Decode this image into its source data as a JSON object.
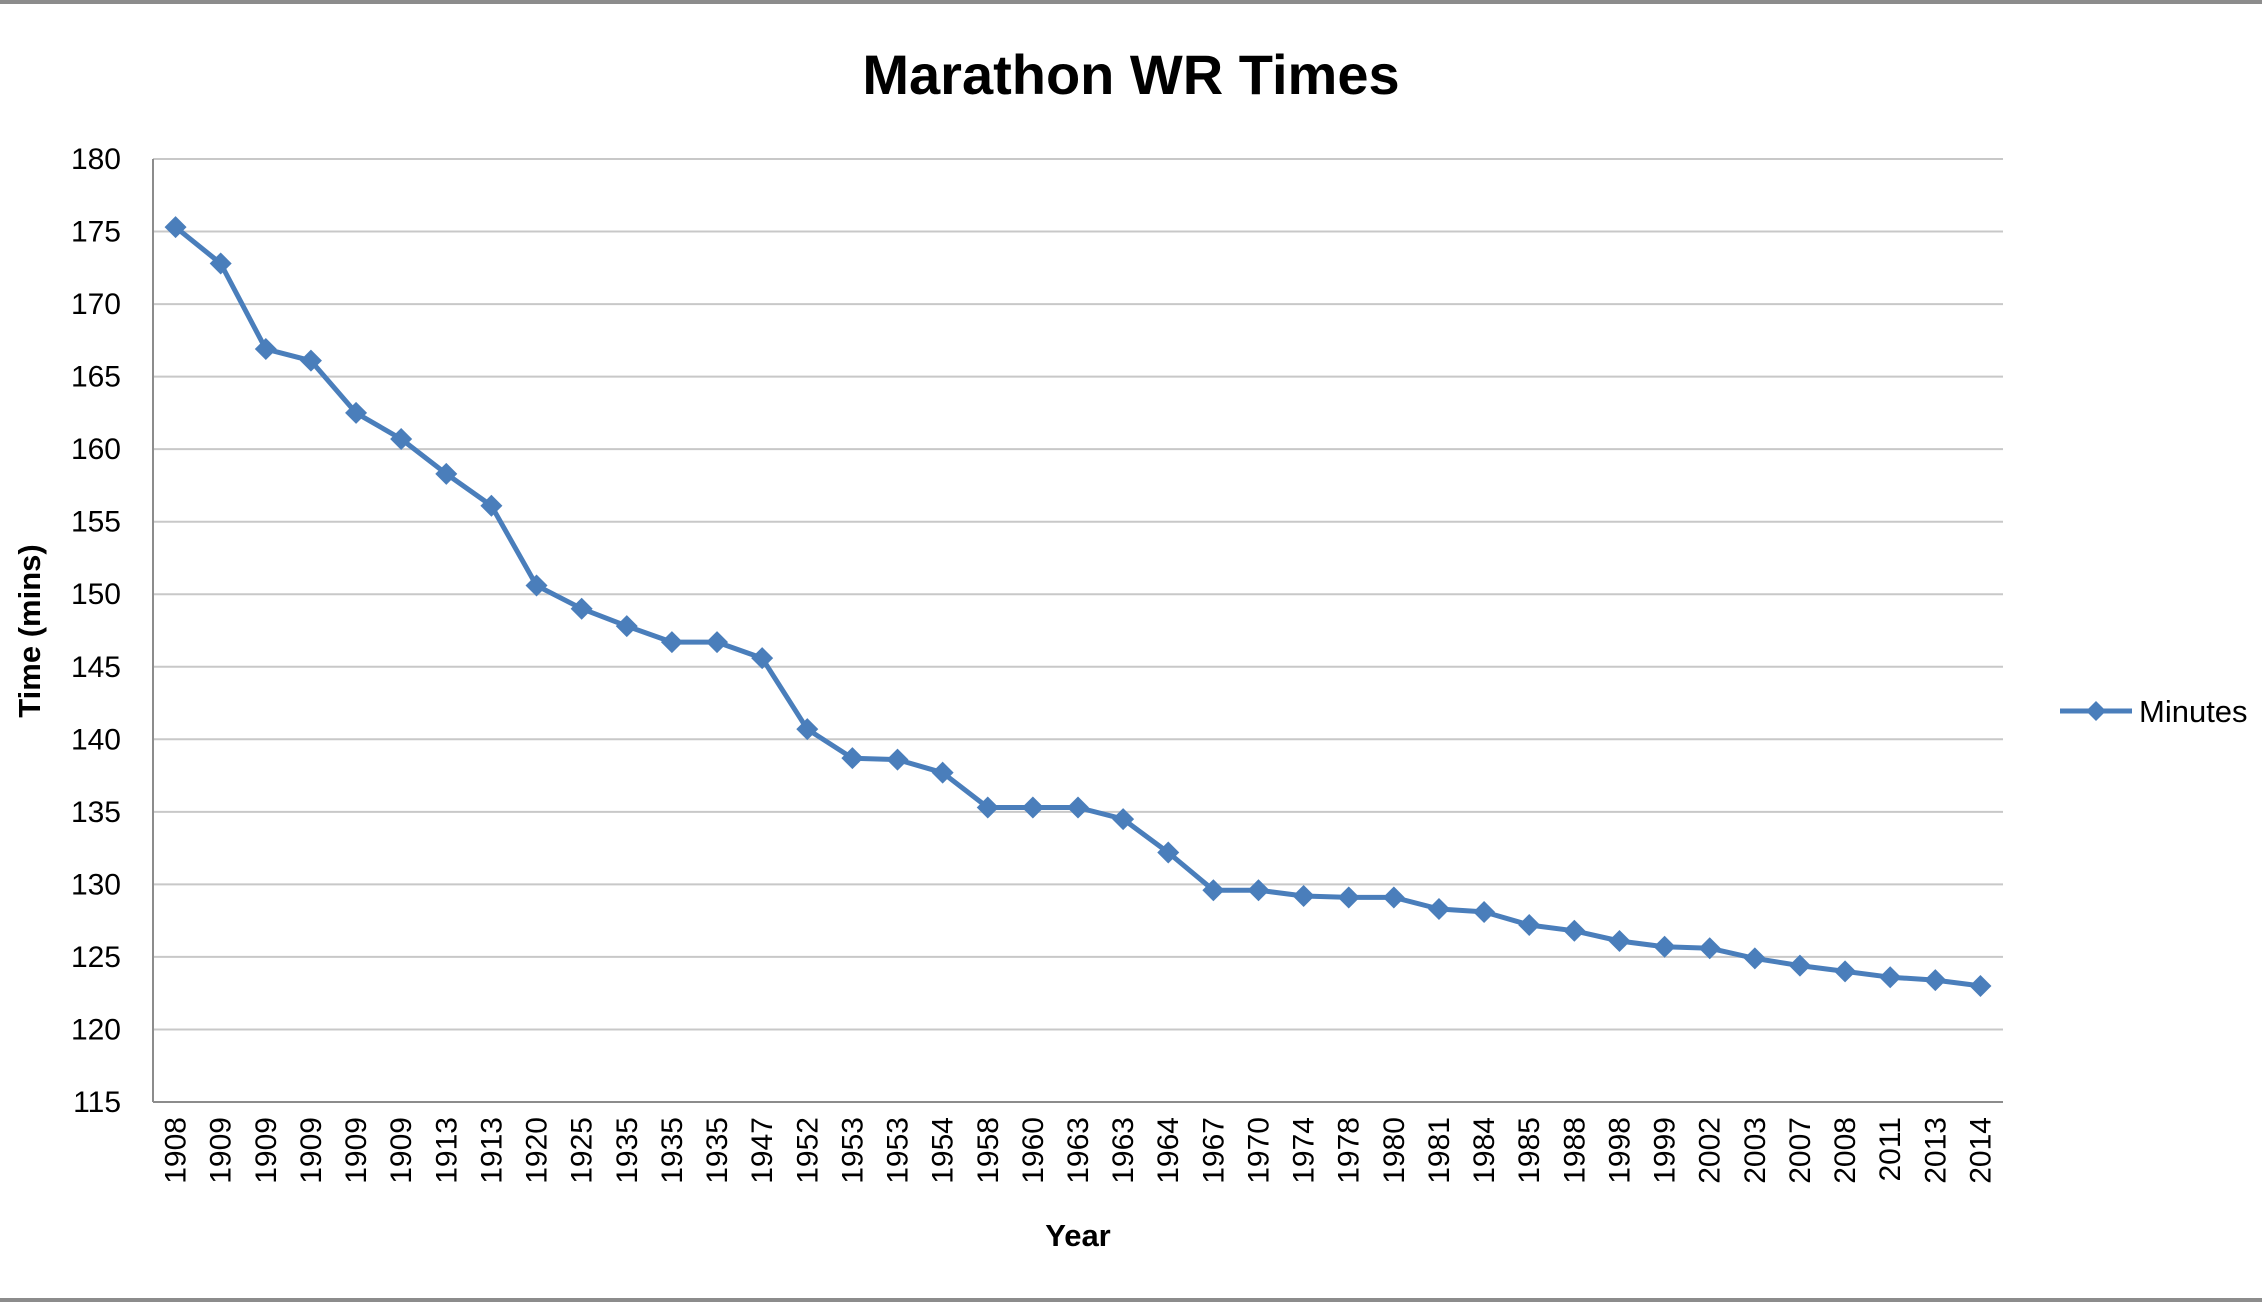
{
  "chart_data": {
    "type": "line",
    "title": "Marathon WR Times",
    "xlabel": "Year",
    "ylabel": "Time (mins)",
    "ylim": [
      115,
      180
    ],
    "ytick_step": 5,
    "yticks": [
      "115",
      "120",
      "125",
      "130",
      "135",
      "140",
      "145",
      "150",
      "155",
      "160",
      "165",
      "170",
      "175",
      "180"
    ],
    "grid": true,
    "legend_position": "right",
    "categories": [
      "1908",
      "1909",
      "1909",
      "1909",
      "1909",
      "1909",
      "1913",
      "1913",
      "1920",
      "1925",
      "1935",
      "1935",
      "1935",
      "1947",
      "1952",
      "1953",
      "1953",
      "1954",
      "1958",
      "1960",
      "1963",
      "1963",
      "1964",
      "1967",
      "1970",
      "1974",
      "1978",
      "1980",
      "1981",
      "1984",
      "1985",
      "1988",
      "1998",
      "1999",
      "2002",
      "2003",
      "2007",
      "2008",
      "2011",
      "2013",
      "2014"
    ],
    "series": [
      {
        "name": "Minutes",
        "color": "#4a7ebb",
        "marker": "diamond",
        "values": [
          175.3,
          172.8,
          166.9,
          166.1,
          162.5,
          160.7,
          158.3,
          156.1,
          150.6,
          149.0,
          147.8,
          146.7,
          146.7,
          145.6,
          140.7,
          138.7,
          138.6,
          137.7,
          135.3,
          135.3,
          135.3,
          134.5,
          132.2,
          129.6,
          129.6,
          129.2,
          129.1,
          129.1,
          128.3,
          128.1,
          127.2,
          126.8,
          126.1,
          125.7,
          125.6,
          124.9,
          124.4,
          124.0,
          123.6,
          123.4,
          123.0
        ]
      }
    ]
  }
}
